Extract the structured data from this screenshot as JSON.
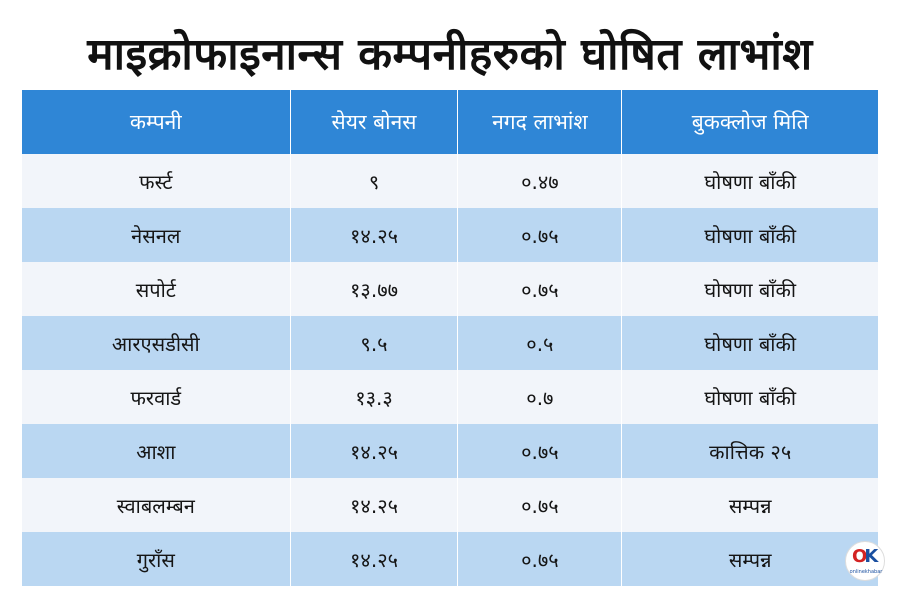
{
  "title": "माइक्रोफाइनान्स कम्पनीहरुको घोषित लाभांश",
  "table": {
    "headers": [
      "कम्पनी",
      "सेयर बोनस",
      "नगद लाभांश",
      "बुकक्लोज मिति"
    ],
    "rows": [
      [
        "फर्स्ट",
        "९",
        "०.४७",
        "घोषणा बाँकी"
      ],
      [
        "नेसनल",
        "१४.२५",
        "०.७५",
        "घोषणा बाँकी"
      ],
      [
        "सपोर्ट",
        "१३.७७",
        "०.७५",
        "घोषणा बाँकी"
      ],
      [
        "आरएसडीसी",
        "९.५",
        "०.५",
        "घोषणा बाँकी"
      ],
      [
        "फरवार्ड",
        "१३.३",
        "०.७",
        "घोषणा बाँकी"
      ],
      [
        "आशा",
        "१४.२५",
        "०.७५",
        "कात्तिक २५"
      ],
      [
        "स्वाबलम्बन",
        "१४.२५",
        "०.७५",
        "सम्पन्न"
      ],
      [
        "गुराँस",
        "१४.२५",
        "०.७५",
        "सम्पन्न"
      ]
    ]
  },
  "logo": {
    "mark_left": "O",
    "mark_right": "K",
    "text": "onlinekhabar"
  },
  "colors": {
    "header_bg": "#2f86d6",
    "row_light": "#f2f5fa",
    "row_blue": "#bad7f2",
    "logo_red": "#d32222",
    "logo_blue": "#1a4fa0"
  }
}
